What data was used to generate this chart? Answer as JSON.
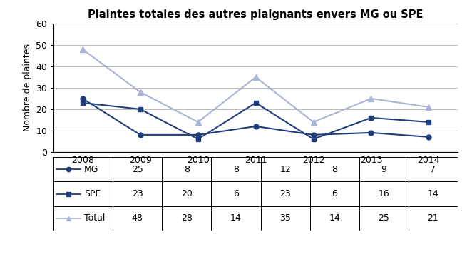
{
  "title": "Plaintes totales des autres plaignants envers MG ou SPE",
  "years": [
    2008,
    2009,
    2010,
    2011,
    2012,
    2013,
    2014
  ],
  "MG": [
    25,
    8,
    8,
    12,
    8,
    9,
    7
  ],
  "SPE": [
    23,
    20,
    6,
    23,
    6,
    16,
    14
  ],
  "Total": [
    48,
    28,
    14,
    35,
    14,
    25,
    21
  ],
  "mg_color": "#1f3d7a",
  "spe_color": "#1f3d7a",
  "total_color": "#aab4d4",
  "ylabel": "Nombre de plaintes",
  "ylim": [
    0,
    60
  ],
  "yticks": [
    0,
    10,
    20,
    30,
    40,
    50,
    60
  ],
  "table_row_labels": [
    "MG",
    "SPE",
    "Total"
  ],
  "bg_color": "#ffffff",
  "grid_color": "#bbbbbb",
  "title_fontsize": 10.5,
  "axis_fontsize": 9,
  "table_fontsize": 9
}
